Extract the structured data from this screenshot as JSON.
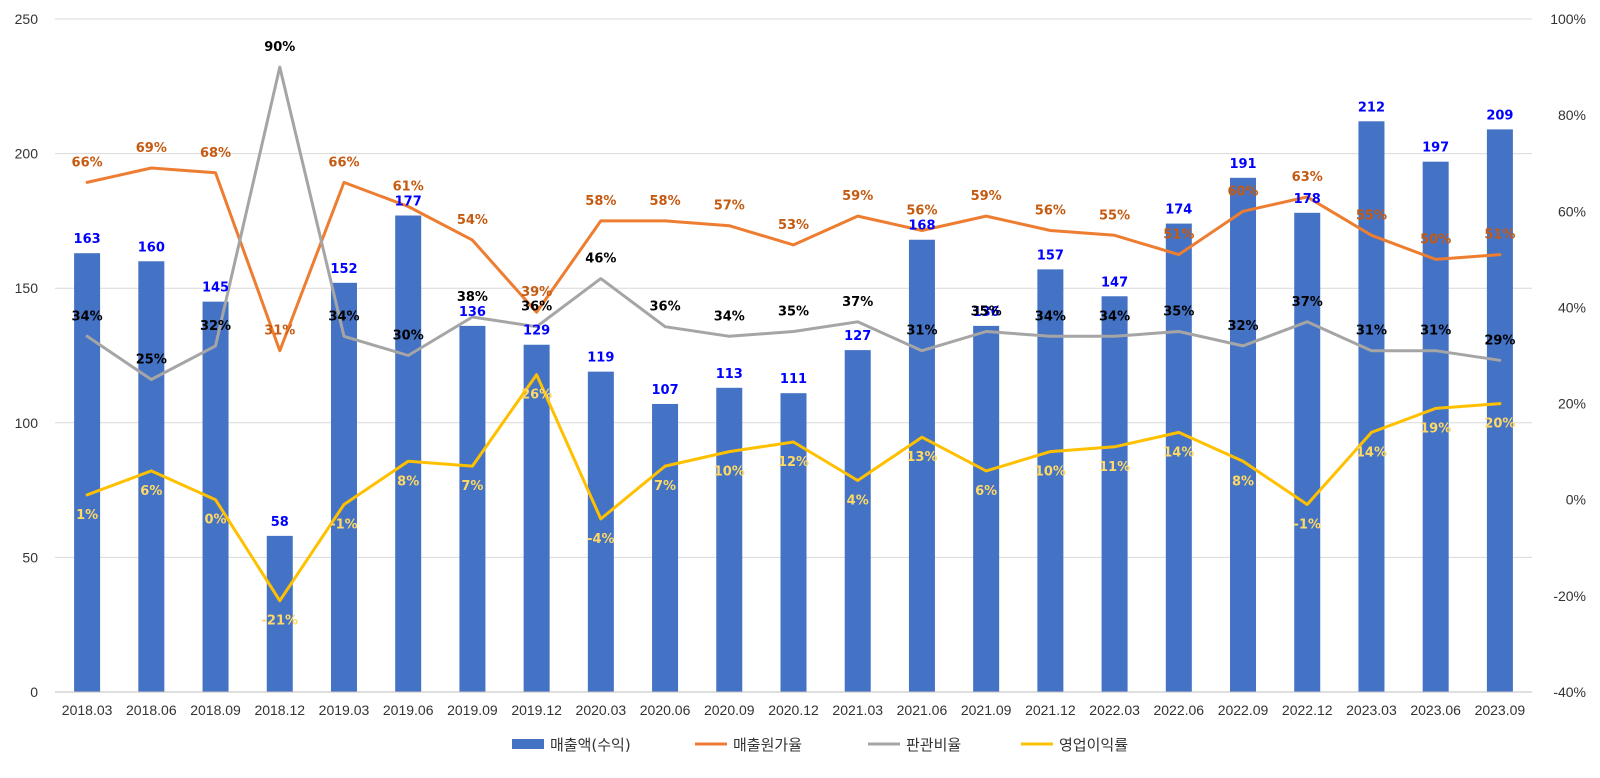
{
  "chart_data": {
    "type": "bar",
    "title": "",
    "categories": [
      "2018.03",
      "2018.06",
      "2018.09",
      "2018.12",
      "2019.03",
      "2019.06",
      "2019.09",
      "2019.12",
      "2020.03",
      "2020.06",
      "2020.09",
      "2020.12",
      "2021.03",
      "2021.06",
      "2021.09",
      "2021.12",
      "2022.03",
      "2022.06",
      "2022.09",
      "2022.12",
      "2023.03",
      "2023.06",
      "2023.09"
    ],
    "left_axis": {
      "min": 0,
      "max": 250,
      "ticks": [
        "0",
        "50",
        "100",
        "150",
        "200",
        "250"
      ]
    },
    "right_axis": {
      "min": -40,
      "max": 100,
      "ticks": [
        "-40%",
        "-20%",
        "0%",
        "20%",
        "40%",
        "60%",
        "80%",
        "100%"
      ]
    },
    "grid": true,
    "legend_position": "bottom",
    "series": [
      {
        "name": "매출액(수익)",
        "kind": "bar",
        "axis": "left",
        "color": "#4472C4",
        "label_color": "#0000FF",
        "values": [
          163,
          160,
          145,
          58,
          152,
          177,
          136,
          129,
          119,
          107,
          113,
          111,
          127,
          168,
          136,
          157,
          147,
          174,
          191,
          178,
          212,
          197,
          209
        ],
        "labels": [
          "163",
          "160",
          "145",
          "58",
          "152",
          "177",
          "136",
          "129",
          "119",
          "107",
          "113",
          "111",
          "127",
          "168",
          "136",
          "157",
          "147",
          "174",
          "191",
          "178",
          "212",
          "197",
          "209"
        ]
      },
      {
        "name": "매출원가율",
        "kind": "line",
        "axis": "right",
        "color": "#ED7D31",
        "label_color": "#C55A11",
        "values": [
          66,
          69,
          68,
          31,
          66,
          61,
          54,
          39,
          58,
          58,
          57,
          53,
          59,
          56,
          59,
          56,
          55,
          51,
          60,
          63,
          55,
          50,
          51
        ],
        "labels": [
          "66%",
          "69%",
          "68%",
          "31%",
          "66%",
          "61%",
          "54%",
          "39%",
          "58%",
          "58%",
          "57%",
          "53%",
          "59%",
          "56%",
          "59%",
          "56%",
          "55%",
          "51%",
          "60%",
          "63%",
          "55%",
          "50%",
          "51%"
        ]
      },
      {
        "name": "판관비율",
        "kind": "line",
        "axis": "right",
        "color": "#A5A5A5",
        "label_color": "#000000",
        "values": [
          34,
          25,
          32,
          90,
          34,
          30,
          38,
          36,
          46,
          36,
          34,
          35,
          37,
          31,
          35,
          34,
          34,
          35,
          32,
          37,
          31,
          31,
          29
        ],
        "labels": [
          "34%",
          "25%",
          "32%",
          "90%",
          "34%",
          "30%",
          "38%",
          "36%",
          "46%",
          "36%",
          "34%",
          "35%",
          "37%",
          "31%",
          "35%",
          "34%",
          "34%",
          "35%",
          "32%",
          "37%",
          "31%",
          "31%",
          "29%"
        ]
      },
      {
        "name": "영업이익률",
        "kind": "line",
        "axis": "right",
        "color": "#FFC000",
        "label_color": "#FFD966",
        "values": [
          1,
          6,
          0,
          -21,
          -1,
          8,
          7,
          26,
          -4,
          7,
          10,
          12,
          4,
          13,
          6,
          10,
          11,
          14,
          8,
          -1,
          14,
          19,
          20
        ],
        "labels": [
          "1%",
          "6%",
          "0%",
          "-21%",
          "-1%",
          "8%",
          "7%",
          "26%",
          "-4%",
          "7%",
          "10%",
          "12%",
          "4%",
          "13%",
          "6%",
          "10%",
          "11%",
          "14%",
          "8%",
          "-1%",
          "14%",
          "19%",
          "20%"
        ]
      }
    ]
  }
}
